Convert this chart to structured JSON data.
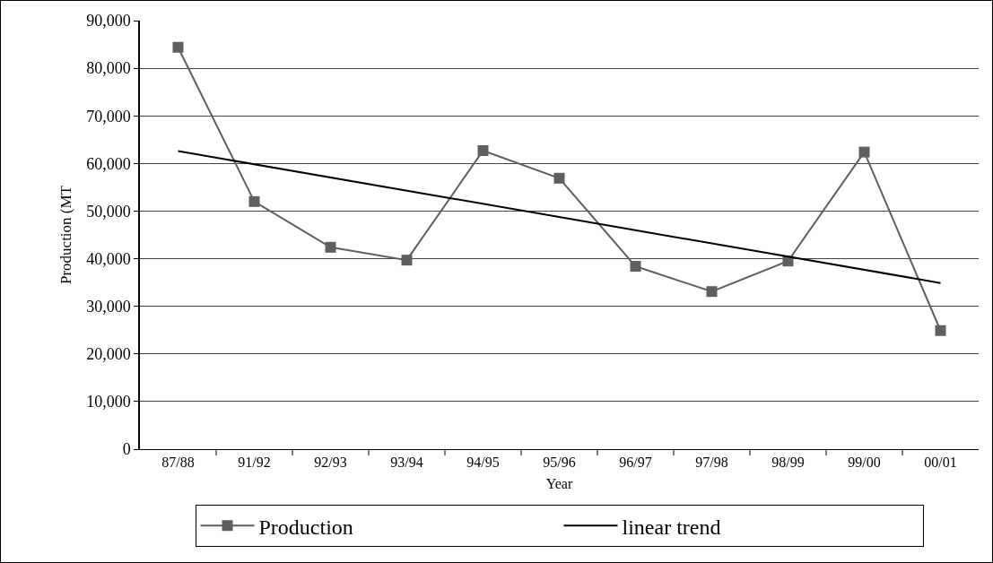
{
  "chart_data": {
    "type": "line",
    "xlabel": "Year",
    "ylabel": "Production (MT",
    "categories": [
      "87/88",
      "91/92",
      "92/93",
      "93/94",
      "94/95",
      "95/96",
      "96/97",
      "97/98",
      "98/99",
      "99/00",
      "00/01"
    ],
    "series": [
      {
        "name": "Production",
        "color": "#5f5f5f",
        "marker": "square",
        "values": [
          84400,
          52000,
          42400,
          39700,
          62700,
          56900,
          38400,
          33100,
          39500,
          62400,
          24900
        ]
      },
      {
        "name": "linear trend",
        "type": "line",
        "color": "#000000",
        "marker": "none",
        "x": [
          "87/88",
          "00/01"
        ],
        "values": [
          62600,
          34900
        ]
      }
    ],
    "ylim": [
      0,
      90000
    ],
    "yticks": [
      {
        "value": 0,
        "label": "0"
      },
      {
        "value": 10000,
        "label": "10,000"
      },
      {
        "value": 20000,
        "label": "20,000"
      },
      {
        "value": 30000,
        "label": "30,000"
      },
      {
        "value": 40000,
        "label": "40,000"
      },
      {
        "value": 50000,
        "label": "50,000"
      },
      {
        "value": 60000,
        "label": "60,000"
      },
      {
        "value": 70000,
        "label": "70,000"
      },
      {
        "value": 80000,
        "label": "80,000"
      },
      {
        "value": 90000,
        "label": "90,000"
      }
    ],
    "grid": "y",
    "legend": "bottom",
    "line_style": "solid"
  }
}
